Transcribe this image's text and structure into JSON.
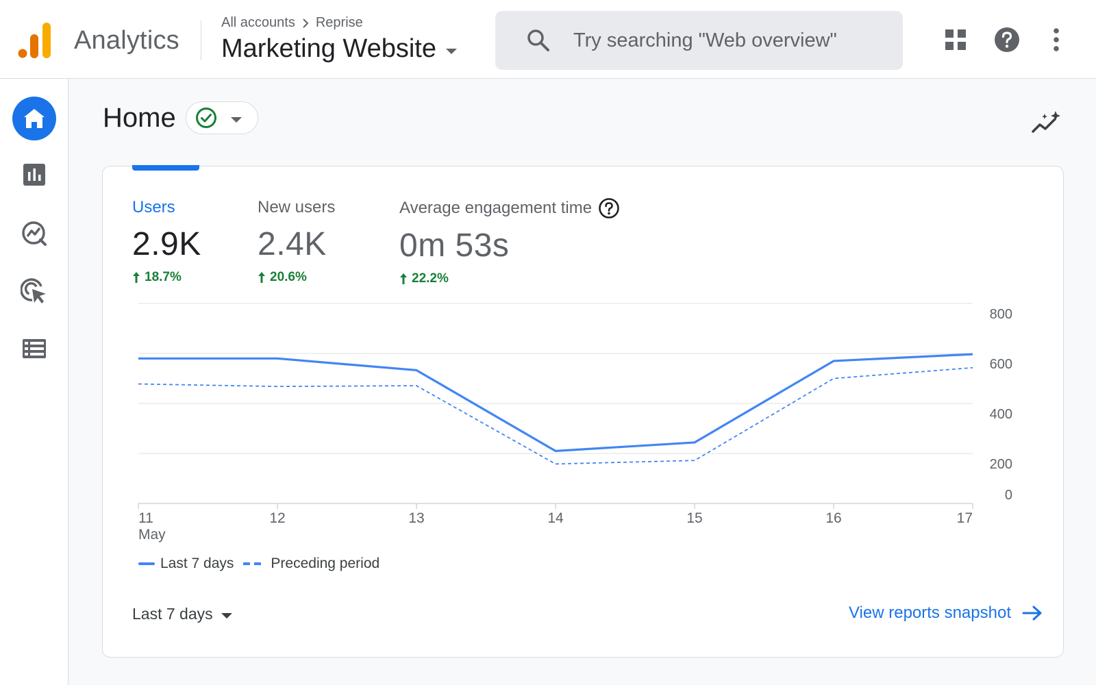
{
  "header": {
    "product_name": "Analytics",
    "breadcrumb": {
      "account": "All accounts",
      "property": "Reprise"
    },
    "property_name": "Marketing Website",
    "search": {
      "placeholder": "Try searching \"Web overview\"",
      "icon": "search-icon"
    },
    "actions": [
      "apps-grid-icon",
      "help-icon",
      "more-vert-icon"
    ]
  },
  "sidebar": {
    "items": [
      {
        "name": "home",
        "icon": "home-icon",
        "active": true
      },
      {
        "name": "reports",
        "icon": "bar-chart-icon",
        "active": false
      },
      {
        "name": "explore",
        "icon": "explore-icon",
        "active": false
      },
      {
        "name": "advertising",
        "icon": "advertising-icon",
        "active": false
      },
      {
        "name": "configure",
        "icon": "list-icon",
        "active": false
      }
    ]
  },
  "page": {
    "title": "Home",
    "status_icon": "check-circle-icon",
    "insights_icon": "insights-icon"
  },
  "card": {
    "metrics": [
      {
        "label": "Users",
        "value": "2.9K",
        "delta": "18.7%",
        "active": true
      },
      {
        "label": "New users",
        "value": "2.4K",
        "delta": "20.6%",
        "active": false
      },
      {
        "label": "Average engagement time",
        "value": "0m 53s",
        "delta": "22.2%",
        "active": false,
        "help_icon": "help-outline-icon"
      }
    ],
    "legend": {
      "current": "Last 7 days",
      "previous": "Preceding period"
    },
    "date_range": "Last 7 days",
    "view_link": "View reports snapshot"
  },
  "colors": {
    "accent": "#1a73e8",
    "series": "#4285f4",
    "positive": "#188038",
    "logo_orange": "#f9ab00",
    "logo_dark_orange": "#e37400"
  },
  "chart_data": {
    "type": "line",
    "x": [
      "11",
      "12",
      "13",
      "14",
      "15",
      "16",
      "17"
    ],
    "x_sublabel": "May",
    "series": [
      {
        "name": "Last 7 days",
        "style": "solid",
        "values": [
          580,
          580,
          533,
          210,
          244,
          570,
          597
        ]
      },
      {
        "name": "Preceding period",
        "style": "dashed",
        "values": [
          478,
          468,
          471,
          158,
          172,
          500,
          543
        ]
      }
    ],
    "y_ticks": [
      0,
      200,
      400,
      600,
      800
    ],
    "ylim": [
      0,
      800
    ],
    "y_axis_position": "right",
    "grid": true,
    "legend_position": "bottom-left"
  }
}
